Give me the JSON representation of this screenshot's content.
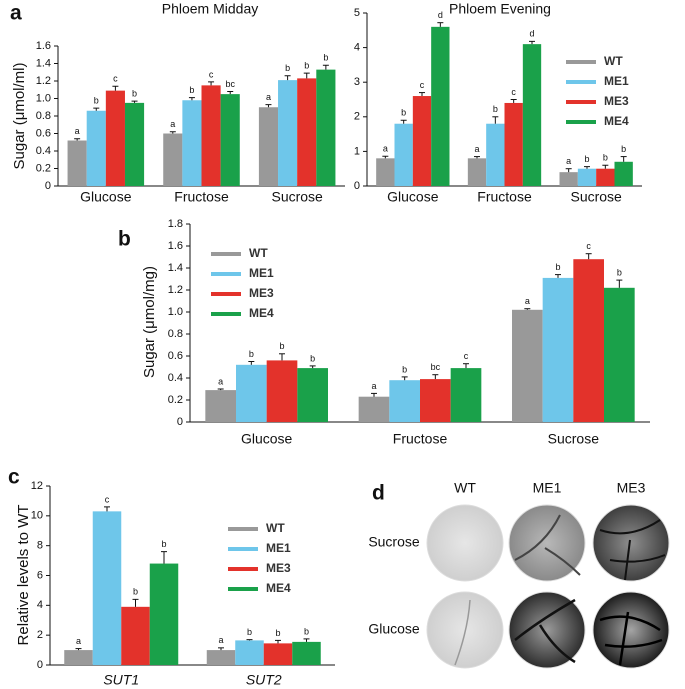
{
  "chart_data": [
    {
      "type": "bar",
      "panel": "a",
      "title": "Phloem Midday",
      "y_label": "Sugar (μmol/ml)",
      "categories": [
        "Glucose",
        "Fructose",
        "Sucrose"
      ],
      "ylim": [
        0,
        1.6
      ],
      "yticks": [
        0,
        0.2,
        0.4,
        0.6,
        0.8,
        {
          "value": 1,
          "label": "1.0"
        },
        1.2,
        1.4,
        1.6
      ],
      "legend": false,
      "series": [
        {
          "color": "#999999",
          "values": [
            0.52,
            0.6,
            0.9
          ],
          "errors": [
            0.02,
            0.02,
            0.03
          ],
          "letters": [
            "a",
            "a",
            "a"
          ]
        },
        {
          "color": "#6ec6ea",
          "values": [
            0.86,
            0.98,
            1.21
          ],
          "errors": [
            0.03,
            0.03,
            0.05
          ],
          "letters": [
            "b",
            "b",
            "b"
          ]
        },
        {
          "color": "#e3322b",
          "values": [
            1.09,
            1.15,
            1.23
          ],
          "errors": [
            0.05,
            0.04,
            0.06
          ],
          "letters": [
            "c",
            "c",
            "b"
          ]
        },
        {
          "color": "#1aa14a",
          "values": [
            0.95,
            1.05,
            1.33
          ],
          "errors": [
            0.02,
            0.03,
            0.05
          ],
          "letters": [
            "b",
            "bc",
            "b"
          ]
        }
      ]
    },
    {
      "type": "bar",
      "title": "Phloem Evening",
      "categories": [
        "Glucose",
        "Fructose",
        "Sucrose"
      ],
      "ylim": [
        0,
        5
      ],
      "yticks": [
        0,
        1,
        2,
        3,
        4,
        5
      ],
      "legend": true,
      "series": [
        {
          "name": "WT",
          "color": "#999999",
          "values": [
            0.8,
            0.8,
            0.4
          ],
          "errors": [
            0.06,
            0.05,
            0.1
          ],
          "letters": [
            "a",
            "a",
            "a"
          ]
        },
        {
          "name": "ME1",
          "color": "#6ec6ea",
          "values": [
            1.8,
            1.8,
            0.5
          ],
          "errors": [
            0.1,
            0.2,
            0.06
          ],
          "letters": [
            "b",
            "b",
            "b"
          ]
        },
        {
          "name": "ME3",
          "color": "#e3322b",
          "values": [
            2.6,
            2.4,
            0.5
          ],
          "errors": [
            0.1,
            0.1,
            0.1
          ],
          "letters": [
            "c",
            "c",
            "b"
          ]
        },
        {
          "name": "ME4",
          "color": "#1aa14a",
          "values": [
            4.6,
            4.1,
            0.7
          ],
          "errors": [
            0.12,
            0.08,
            0.15
          ],
          "letters": [
            "d",
            "d",
            "b"
          ]
        }
      ]
    },
    {
      "type": "bar",
      "panel": "b",
      "y_label": "Sugar (μmol/mg)",
      "categories": [
        "Glucose",
        "Fructose",
        "Sucrose"
      ],
      "ylim": [
        0,
        1.8
      ],
      "yticks": [
        0,
        0.2,
        0.4,
        0.6,
        0.8,
        {
          "value": 1,
          "label": "1.0"
        },
        1.2,
        1.4,
        1.6,
        1.8
      ],
      "legend": true,
      "series": [
        {
          "name": "WT",
          "color": "#999999",
          "values": [
            0.29,
            0.23,
            1.02
          ],
          "errors": [
            0.01,
            0.03,
            0.01
          ],
          "letters": [
            "a",
            "a",
            "a"
          ]
        },
        {
          "name": "ME1",
          "color": "#6ec6ea",
          "values": [
            0.52,
            0.38,
            1.31
          ],
          "errors": [
            0.03,
            0.03,
            0.03
          ],
          "letters": [
            "b",
            "b",
            "b"
          ]
        },
        {
          "name": "ME3",
          "color": "#e3322b",
          "values": [
            0.56,
            0.39,
            1.48
          ],
          "errors": [
            0.06,
            0.04,
            0.05
          ],
          "letters": [
            "b",
            "bc",
            "c"
          ]
        },
        {
          "name": "ME4",
          "color": "#1aa14a",
          "values": [
            0.49,
            0.49,
            1.22
          ],
          "errors": [
            0.02,
            0.04,
            0.07
          ],
          "letters": [
            "b",
            "c",
            "b"
          ]
        }
      ]
    },
    {
      "type": "bar",
      "panel": "c",
      "y_label": "Relative levels to WT",
      "categories": [
        "SUT1",
        "SUT2"
      ],
      "ylim": [
        0,
        12
      ],
      "yticks": [
        0,
        2,
        4,
        6,
        8,
        10,
        12
      ],
      "legend": true,
      "series": [
        {
          "name": "WT",
          "color": "#999999",
          "values": [
            1,
            1
          ],
          "errors": [
            0.1,
            0.15
          ],
          "letters": [
            "a",
            "a"
          ]
        },
        {
          "name": "ME1",
          "color": "#6ec6ea",
          "values": [
            10.3,
            1.65
          ],
          "errors": [
            0.3,
            0.05
          ],
          "letters": [
            "c",
            "b"
          ]
        },
        {
          "name": "ME3",
          "color": "#e3322b",
          "values": [
            3.9,
            1.45
          ],
          "errors": [
            0.5,
            0.2
          ],
          "letters": [
            "b",
            "b"
          ]
        },
        {
          "name": "ME4",
          "color": "#1aa14a",
          "values": [
            6.8,
            1.55
          ],
          "errors": [
            0.8,
            0.2
          ],
          "letters": [
            "b",
            "b"
          ]
        }
      ]
    }
  ],
  "image_panel": {
    "panel": "d",
    "columns": [
      "WT",
      "ME1",
      "ME3"
    ],
    "rows": [
      "Sucrose",
      "Glucose"
    ]
  }
}
